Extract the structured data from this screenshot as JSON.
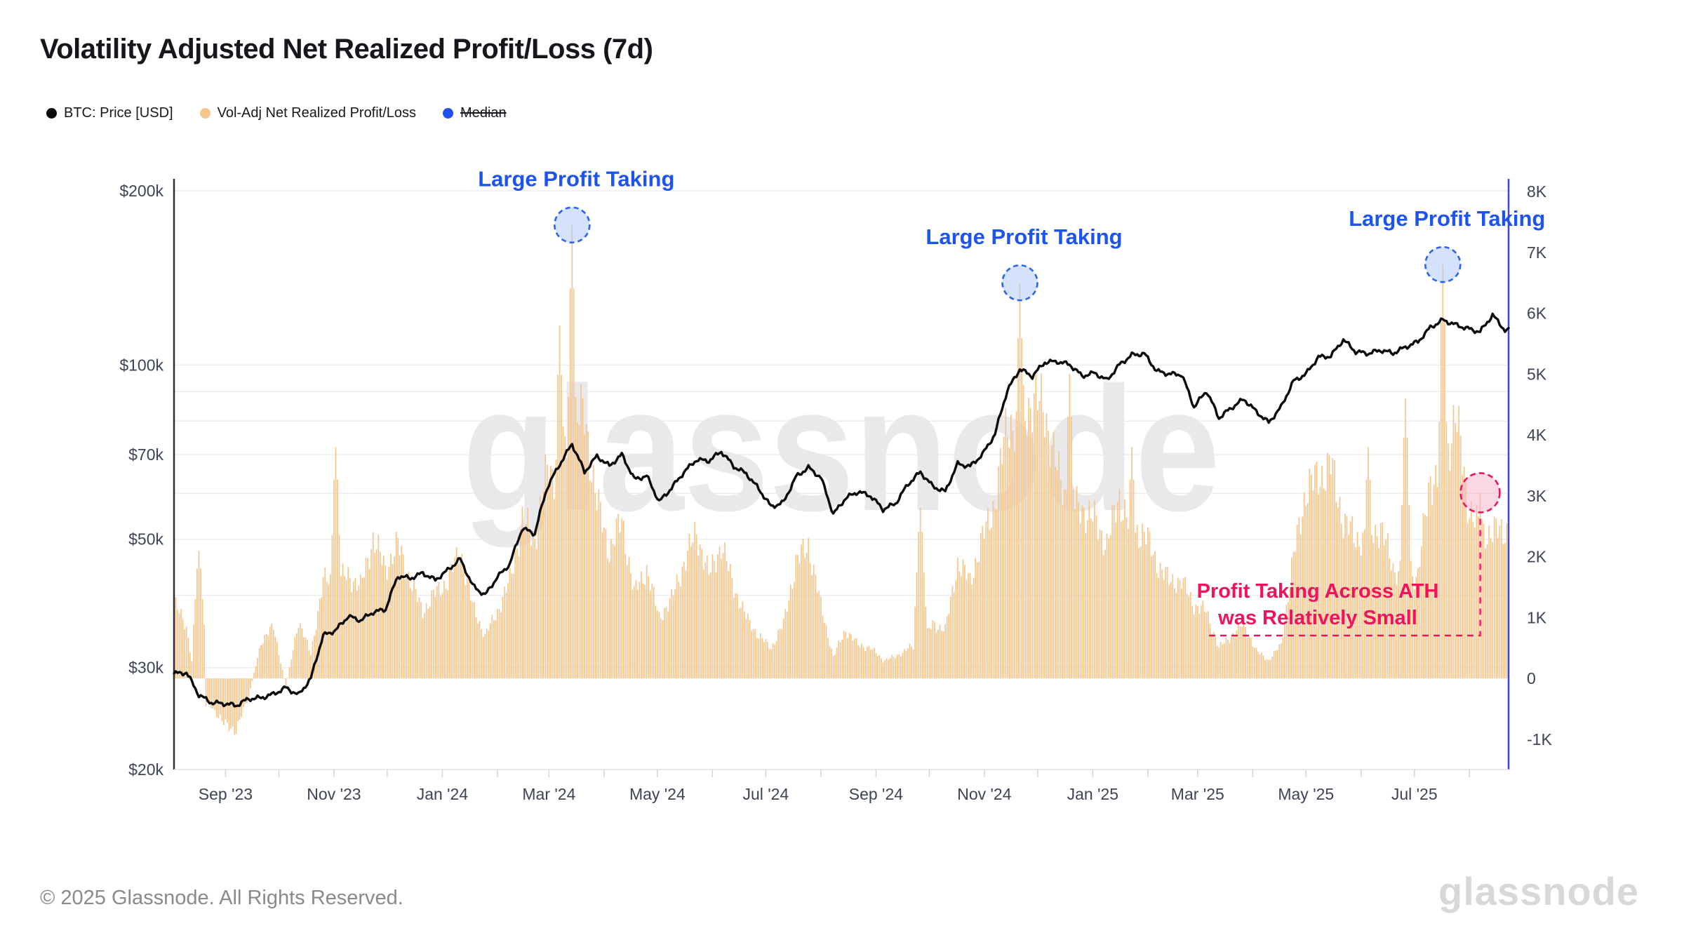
{
  "title": "Volatility Adjusted Net Realized Profit/Loss (7d)",
  "legend": [
    {
      "label": "BTC: Price [USD]",
      "color": "#0b0b0c",
      "disabled": false
    },
    {
      "label": "Vol-Adj Net Realized Profit/Loss",
      "color": "#f5c68c",
      "disabled": false
    },
    {
      "label": "Median",
      "color": "#1d4ff1",
      "disabled": true
    }
  ],
  "watermark": "glassnode",
  "footer": {
    "copyright": "© 2025 Glassnode. All Rights Reserved.",
    "brand": "glassnode"
  },
  "chart_data": {
    "type": "mixed",
    "x_axis": {
      "start": "2023-08-03",
      "end": "2025-08-23",
      "ticks": [
        {
          "label": "Sep '23",
          "date": "2023-09-01"
        },
        {
          "label": "Nov '23",
          "date": "2023-11-01"
        },
        {
          "label": "Jan '24",
          "date": "2024-01-01"
        },
        {
          "label": "Mar '24",
          "date": "2024-03-01"
        },
        {
          "label": "May '24",
          "date": "2024-05-01"
        },
        {
          "label": "Jul '24",
          "date": "2024-07-01"
        },
        {
          "label": "Sep '24",
          "date": "2024-09-01"
        },
        {
          "label": "Nov '24",
          "date": "2024-11-01"
        },
        {
          "label": "Jan '25",
          "date": "2025-01-01"
        },
        {
          "label": "Mar '25",
          "date": "2025-03-01"
        },
        {
          "label": "May '25",
          "date": "2025-05-01"
        },
        {
          "label": "Jul '25",
          "date": "2025-07-01"
        }
      ]
    },
    "y_left": {
      "scale": "log",
      "unit": "USD",
      "domain_k": [
        20,
        200
      ],
      "ticks": [
        {
          "label": "$200k",
          "value": 200
        },
        {
          "label": "$100k",
          "value": 100
        },
        {
          "label": "$70k",
          "value": 70
        },
        {
          "label": "$50k",
          "value": 50
        },
        {
          "label": "$30k",
          "value": 30
        },
        {
          "label": "$20k",
          "value": 20
        }
      ],
      "gridline_values": [
        20,
        30,
        40,
        50,
        60,
        70,
        80,
        90,
        100,
        200
      ]
    },
    "y_right": {
      "scale": "linear",
      "unit": "K",
      "domain": [
        -1.5,
        8
      ],
      "ticks": [
        {
          "label": "8K",
          "value": 8
        },
        {
          "label": "7K",
          "value": 7
        },
        {
          "label": "6K",
          "value": 6
        },
        {
          "label": "5K",
          "value": 5
        },
        {
          "label": "4K",
          "value": 4
        },
        {
          "label": "3K",
          "value": 3
        },
        {
          "label": "2K",
          "value": 2
        },
        {
          "label": "1K",
          "value": 1
        },
        {
          "label": "0",
          "value": 0
        },
        {
          "label": "-1K",
          "value": -1
        }
      ]
    },
    "series": [
      {
        "name": "BTC: Price [USD]",
        "type": "line",
        "axis": "left",
        "color": "#0b0b0c",
        "column": 1,
        "unit": "USD thousands"
      },
      {
        "name": "Vol-Adj Net Realized Profit/Loss",
        "type": "bar",
        "axis": "right",
        "color": "#f5c68c",
        "column": 2,
        "unit": "K"
      },
      {
        "name": "Median",
        "type": "line",
        "axis": "right",
        "color": "#1d4ff1",
        "disabled": true
      }
    ],
    "weekly_points": [
      [
        "2023-08-03",
        29.3,
        1.25
      ],
      [
        "2023-08-10",
        29.4,
        0.85
      ],
      [
        "2023-08-17",
        26.9,
        2.1
      ],
      [
        "2023-08-24",
        26.1,
        -0.45
      ],
      [
        "2023-08-31",
        26.0,
        -0.75
      ],
      [
        "2023-09-07",
        25.8,
        -0.85
      ],
      [
        "2023-09-14",
        26.5,
        -0.3
      ],
      [
        "2023-09-21",
        26.6,
        0.6
      ],
      [
        "2023-09-28",
        27.0,
        0.85
      ],
      [
        "2023-10-05",
        27.7,
        -0.15
      ],
      [
        "2023-10-12",
        26.9,
        0.95
      ],
      [
        "2023-10-19",
        28.7,
        0.4
      ],
      [
        "2023-10-26",
        34.1,
        1.6
      ],
      [
        "2023-11-02",
        34.8,
        3.8
      ],
      [
        "2023-11-09",
        36.8,
        1.7
      ],
      [
        "2023-11-16",
        36.2,
        1.5
      ],
      [
        "2023-11-23",
        37.4,
        2.3
      ],
      [
        "2023-11-30",
        37.8,
        1.8
      ],
      [
        "2023-12-07",
        43.2,
        2.2
      ],
      [
        "2023-12-14",
        42.8,
        1.6
      ],
      [
        "2023-12-21",
        43.7,
        1.1
      ],
      [
        "2023-12-28",
        42.5,
        1.4
      ],
      [
        "2024-01-04",
        44.2,
        1.6
      ],
      [
        "2024-01-11",
        46.2,
        2.1
      ],
      [
        "2024-01-18",
        41.6,
        1.2
      ],
      [
        "2024-01-25",
        40.0,
        0.7
      ],
      [
        "2024-02-01",
        43.0,
        1.1
      ],
      [
        "2024-02-08",
        45.3,
        1.6
      ],
      [
        "2024-02-15",
        52.2,
        2.6
      ],
      [
        "2024-02-22",
        51.1,
        2.3
      ],
      [
        "2024-02-29",
        61.4,
        3.4
      ],
      [
        "2024-03-07",
        67.3,
        5.8
      ],
      [
        "2024-03-14",
        73.0,
        7.45
      ],
      [
        "2024-03-21",
        65.3,
        4.3
      ],
      [
        "2024-03-28",
        69.6,
        2.9
      ],
      [
        "2024-04-04",
        66.9,
        2.1
      ],
      [
        "2024-04-11",
        70.0,
        2.6
      ],
      [
        "2024-04-18",
        63.5,
        1.4
      ],
      [
        "2024-04-25",
        64.3,
        1.8
      ],
      [
        "2024-05-02",
        58.0,
        1.0
      ],
      [
        "2024-05-09",
        61.3,
        1.3
      ],
      [
        "2024-05-16",
        65.3,
        1.9
      ],
      [
        "2024-05-23",
        68.6,
        2.4
      ],
      [
        "2024-05-30",
        68.3,
        1.7
      ],
      [
        "2024-06-06",
        70.9,
        2.2
      ],
      [
        "2024-06-13",
        66.8,
        1.5
      ],
      [
        "2024-06-20",
        64.9,
        1.0
      ],
      [
        "2024-06-27",
        61.1,
        0.7
      ],
      [
        "2024-07-04",
        56.9,
        0.5
      ],
      [
        "2024-07-11",
        57.9,
        0.9
      ],
      [
        "2024-07-18",
        64.1,
        1.9
      ],
      [
        "2024-07-25",
        66.5,
        2.2
      ],
      [
        "2024-08-01",
        63.9,
        1.2
      ],
      [
        "2024-08-08",
        55.2,
        0.35
      ],
      [
        "2024-08-15",
        58.9,
        0.8
      ],
      [
        "2024-08-22",
        60.4,
        0.55
      ],
      [
        "2024-08-29",
        59.4,
        0.5
      ],
      [
        "2024-09-05",
        56.3,
        0.3
      ],
      [
        "2024-09-12",
        57.6,
        0.35
      ],
      [
        "2024-09-19",
        62.2,
        0.5
      ],
      [
        "2024-09-26",
        65.3,
        2.8
      ],
      [
        "2024-10-03",
        61.7,
        0.9
      ],
      [
        "2024-10-10",
        60.4,
        0.8
      ],
      [
        "2024-10-17",
        67.5,
        1.9
      ],
      [
        "2024-10-24",
        66.8,
        1.6
      ],
      [
        "2024-10-31",
        70.1,
        2.3
      ],
      [
        "2024-11-07",
        75.9,
        2.9
      ],
      [
        "2024-11-14",
        90.4,
        4.2
      ],
      [
        "2024-11-21",
        98.4,
        6.5
      ],
      [
        "2024-11-28",
        95.6,
        4.6
      ],
      [
        "2024-12-05",
        101.1,
        4.4
      ],
      [
        "2024-12-12",
        101.4,
        3.4
      ],
      [
        "2024-12-19",
        100.2,
        5.0
      ],
      [
        "2024-12-26",
        95.7,
        2.8
      ],
      [
        "2025-01-02",
        96.9,
        2.6
      ],
      [
        "2025-01-09",
        94.1,
        2.2
      ],
      [
        "2025-01-16",
        100.1,
        3.0
      ],
      [
        "2025-01-23",
        104.1,
        3.8
      ],
      [
        "2025-01-30",
        104.6,
        2.4
      ],
      [
        "2025-02-06",
        97.6,
        1.9
      ],
      [
        "2025-02-13",
        96.5,
        1.6
      ],
      [
        "2025-02-20",
        96.3,
        1.6
      ],
      [
        "2025-02-27",
        84.6,
        1.2
      ],
      [
        "2025-03-06",
        90.2,
        1.1
      ],
      [
        "2025-03-13",
        81.0,
        0.5
      ],
      [
        "2025-03-20",
        84.3,
        0.7
      ],
      [
        "2025-03-27",
        87.3,
        0.9
      ],
      [
        "2025-04-03",
        83.1,
        0.45
      ],
      [
        "2025-04-10",
        79.5,
        0.3
      ],
      [
        "2025-04-17",
        84.6,
        0.55
      ],
      [
        "2025-04-24",
        93.8,
        2.0
      ],
      [
        "2025-05-01",
        96.5,
        3.1
      ],
      [
        "2025-05-08",
        103.2,
        3.3
      ],
      [
        "2025-05-15",
        103.6,
        3.5
      ],
      [
        "2025-05-22",
        110.6,
        2.6
      ],
      [
        "2025-05-29",
        105.4,
        2.3
      ],
      [
        "2025-06-05",
        104.7,
        3.8
      ],
      [
        "2025-06-12",
        106.1,
        2.5
      ],
      [
        "2025-06-19",
        104.8,
        1.8
      ],
      [
        "2025-06-26",
        107.4,
        4.6
      ],
      [
        "2025-07-03",
        109.7,
        1.7
      ],
      [
        "2025-07-10",
        116.1,
        3.3
      ],
      [
        "2025-07-17",
        119.6,
        6.8
      ],
      [
        "2025-07-24",
        117.4,
        4.4
      ],
      [
        "2025-07-31",
        115.6,
        2.9
      ],
      [
        "2025-08-07",
        114.1,
        3.05
      ],
      [
        "2025-08-14",
        122.0,
        2.4
      ],
      [
        "2025-08-21",
        114.8,
        2.45
      ]
    ],
    "spike_dates": [
      "2023-08-17",
      "2023-11-02",
      "2024-03-07",
      "2024-03-14",
      "2024-09-26",
      "2024-11-21",
      "2024-12-19",
      "2025-01-23",
      "2025-06-05",
      "2025-06-26",
      "2025-07-17",
      "2025-08-07"
    ],
    "annotations": {
      "colors": {
        "blue_text": "#1d53ee",
        "blue_fill": "rgba(170,200,247,0.5)",
        "pink_text": "#f1125c",
        "pink_fill": "rgba(247,176,201,0.5)"
      },
      "markers": [
        {
          "label": "Large Profit Taking",
          "date": "2024-03-14",
          "value_k": 7.45,
          "radius": 25
        },
        {
          "label": "Large Profit Taking",
          "date": "2024-11-21",
          "value_k": 6.5,
          "radius": 25
        },
        {
          "label": "Large Profit Taking",
          "date": "2025-07-17",
          "value_k": 6.8,
          "radius": 25
        }
      ],
      "callout": {
        "lines": [
          "Profit Taking Across ATH",
          "was Relatively Small"
        ],
        "date": "2025-08-07",
        "value_k": 3.05,
        "radius": 28,
        "text_center_x": 1878,
        "text_center_y": 845,
        "leader_y": 906,
        "leader_x_start": 1723
      }
    }
  }
}
